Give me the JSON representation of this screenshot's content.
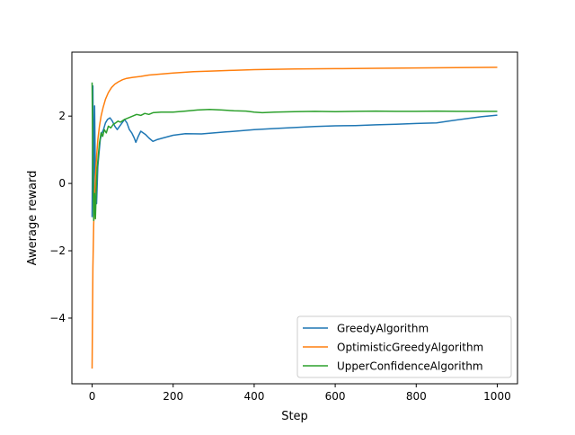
{
  "chart_data": {
    "type": "line",
    "title": "",
    "xlabel": "Step",
    "ylabel": "Awerage reward",
    "xlim": [
      -50,
      1050
    ],
    "ylim": [
      -5.95,
      3.9
    ],
    "x_ticks": [
      0,
      200,
      400,
      600,
      800,
      1000
    ],
    "y_ticks": [
      -4,
      -2,
      0,
      2
    ],
    "x_tick_labels": [
      "0",
      "200",
      "400",
      "600",
      "800",
      "1000"
    ],
    "y_tick_labels": [
      "−4",
      "−2",
      "0",
      "2"
    ],
    "grid": false,
    "legend_position": "lower-right",
    "series": [
      {
        "name": "GreedyAlgorithm",
        "color": "#1f77b4",
        "points": [
          [
            0,
            -1.0
          ],
          [
            2,
            2.9
          ],
          [
            4,
            -0.6
          ],
          [
            6,
            2.3
          ],
          [
            8,
            0.1
          ],
          [
            11,
            -0.6
          ],
          [
            14,
            0.5
          ],
          [
            17,
            0.9
          ],
          [
            20,
            1.3
          ],
          [
            24,
            1.5
          ],
          [
            28,
            1.6
          ],
          [
            33,
            1.8
          ],
          [
            38,
            1.9
          ],
          [
            44,
            1.95
          ],
          [
            50,
            1.85
          ],
          [
            56,
            1.7
          ],
          [
            62,
            1.6
          ],
          [
            68,
            1.7
          ],
          [
            74,
            1.8
          ],
          [
            80,
            1.9
          ],
          [
            86,
            1.8
          ],
          [
            92,
            1.6
          ],
          [
            98,
            1.5
          ],
          [
            104,
            1.35
          ],
          [
            108,
            1.22
          ],
          [
            114,
            1.4
          ],
          [
            120,
            1.55
          ],
          [
            126,
            1.5
          ],
          [
            132,
            1.45
          ],
          [
            140,
            1.35
          ],
          [
            150,
            1.25
          ],
          [
            160,
            1.3
          ],
          [
            175,
            1.35
          ],
          [
            200,
            1.43
          ],
          [
            230,
            1.48
          ],
          [
            270,
            1.47
          ],
          [
            300,
            1.5
          ],
          [
            330,
            1.53
          ],
          [
            360,
            1.56
          ],
          [
            400,
            1.6
          ],
          [
            450,
            1.63
          ],
          [
            500,
            1.66
          ],
          [
            550,
            1.69
          ],
          [
            600,
            1.71
          ],
          [
            650,
            1.72
          ],
          [
            700,
            1.74
          ],
          [
            750,
            1.76
          ],
          [
            800,
            1.78
          ],
          [
            850,
            1.8
          ],
          [
            880,
            1.85
          ],
          [
            920,
            1.92
          ],
          [
            960,
            1.98
          ],
          [
            1000,
            2.03
          ]
        ]
      },
      {
        "name": "OptimisticGreedyAlgorithm",
        "color": "#ff7f0e",
        "points": [
          [
            0,
            -5.5
          ],
          [
            2,
            -2.5
          ],
          [
            4,
            -1.2
          ],
          [
            6,
            -0.4
          ],
          [
            8,
            0.2
          ],
          [
            11,
            0.8
          ],
          [
            14,
            1.3
          ],
          [
            18,
            1.7
          ],
          [
            22,
            2.0
          ],
          [
            27,
            2.25
          ],
          [
            33,
            2.5
          ],
          [
            40,
            2.7
          ],
          [
            48,
            2.85
          ],
          [
            56,
            2.95
          ],
          [
            65,
            3.02
          ],
          [
            75,
            3.08
          ],
          [
            85,
            3.12
          ],
          [
            100,
            3.15
          ],
          [
            120,
            3.18
          ],
          [
            140,
            3.22
          ],
          [
            170,
            3.25
          ],
          [
            200,
            3.28
          ],
          [
            250,
            3.32
          ],
          [
            300,
            3.34
          ],
          [
            350,
            3.36
          ],
          [
            400,
            3.38
          ],
          [
            500,
            3.4
          ],
          [
            600,
            3.41
          ],
          [
            700,
            3.42
          ],
          [
            800,
            3.43
          ],
          [
            900,
            3.44
          ],
          [
            1000,
            3.45
          ]
        ]
      },
      {
        "name": "UpperConfidenceAlgorithm",
        "color": "#2ca02c",
        "points": [
          [
            0,
            3.0
          ],
          [
            2,
            0.2
          ],
          [
            4,
            -1.1
          ],
          [
            6,
            -0.3
          ],
          [
            8,
            -1.05
          ],
          [
            10,
            -0.2
          ],
          [
            12,
            0.4
          ],
          [
            15,
            0.8
          ],
          [
            18,
            1.2
          ],
          [
            22,
            1.5
          ],
          [
            26,
            1.4
          ],
          [
            30,
            1.6
          ],
          [
            35,
            1.5
          ],
          [
            40,
            1.7
          ],
          [
            46,
            1.65
          ],
          [
            52,
            1.75
          ],
          [
            58,
            1.8
          ],
          [
            64,
            1.85
          ],
          [
            70,
            1.82
          ],
          [
            80,
            1.9
          ],
          [
            90,
            1.95
          ],
          [
            100,
            2.0
          ],
          [
            110,
            2.05
          ],
          [
            120,
            2.02
          ],
          [
            130,
            2.08
          ],
          [
            140,
            2.05
          ],
          [
            150,
            2.1
          ],
          [
            170,
            2.12
          ],
          [
            200,
            2.12
          ],
          [
            230,
            2.15
          ],
          [
            260,
            2.18
          ],
          [
            290,
            2.2
          ],
          [
            320,
            2.18
          ],
          [
            350,
            2.16
          ],
          [
            380,
            2.15
          ],
          [
            400,
            2.12
          ],
          [
            420,
            2.1
          ],
          [
            450,
            2.12
          ],
          [
            500,
            2.13
          ],
          [
            550,
            2.14
          ],
          [
            600,
            2.13
          ],
          [
            650,
            2.14
          ],
          [
            700,
            2.15
          ],
          [
            750,
            2.14
          ],
          [
            800,
            2.14
          ],
          [
            850,
            2.15
          ],
          [
            900,
            2.14
          ],
          [
            950,
            2.14
          ],
          [
            1000,
            2.14
          ]
        ]
      }
    ]
  }
}
